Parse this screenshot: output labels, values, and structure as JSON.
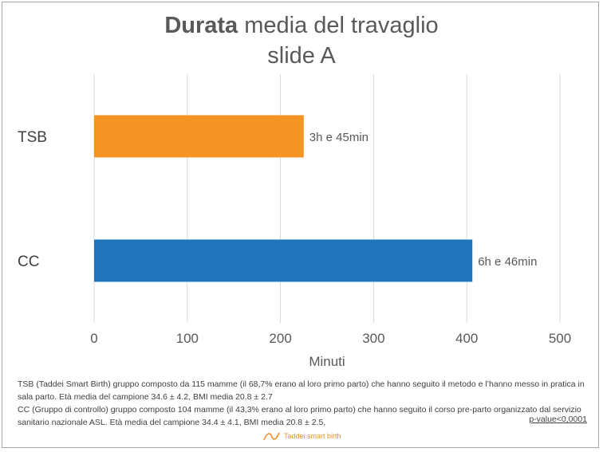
{
  "title_bold": "Durata",
  "title_rest": " media del travaglio",
  "subtitle": "slide A",
  "chart_data": {
    "type": "bar",
    "orientation": "horizontal",
    "categories": [
      "TSB",
      "CC"
    ],
    "values": [
      225,
      406
    ],
    "data_labels": [
      "3h e 45min",
      "6h e 46min"
    ],
    "colors": [
      "#f39425",
      "#1f74bb"
    ],
    "xlabel": "Minuti",
    "xlim": [
      0,
      500
    ],
    "xticks": [
      0,
      100,
      200,
      300,
      400,
      500
    ],
    "grid": true
  },
  "footnote": {
    "line1": "TSB (Taddei Smart Birth) gruppo composto da 115 mamme (il 68,7% erano al loro primo parto) che hanno seguito il metodo e l’hanno messo in pratica in sala parto. Età media del campione 34.6 ± 4.2, BMI media 20.8 ± 2.7",
    "line2": "CC (Gruppo di controllo) gruppo composto 104 mamme (il 43,3% erano al loro primo parto) che hanno seguito il corso pre-parto organizzato dal servizio sanitario nazionale ASL. Età media del campione 34.4 ± 4.1, BMI media 20.8 ± 2.5,",
    "pvalue": "p-value<0,0001"
  },
  "logo_text": "Taddei smart birth",
  "logo_color": "#e8932a"
}
